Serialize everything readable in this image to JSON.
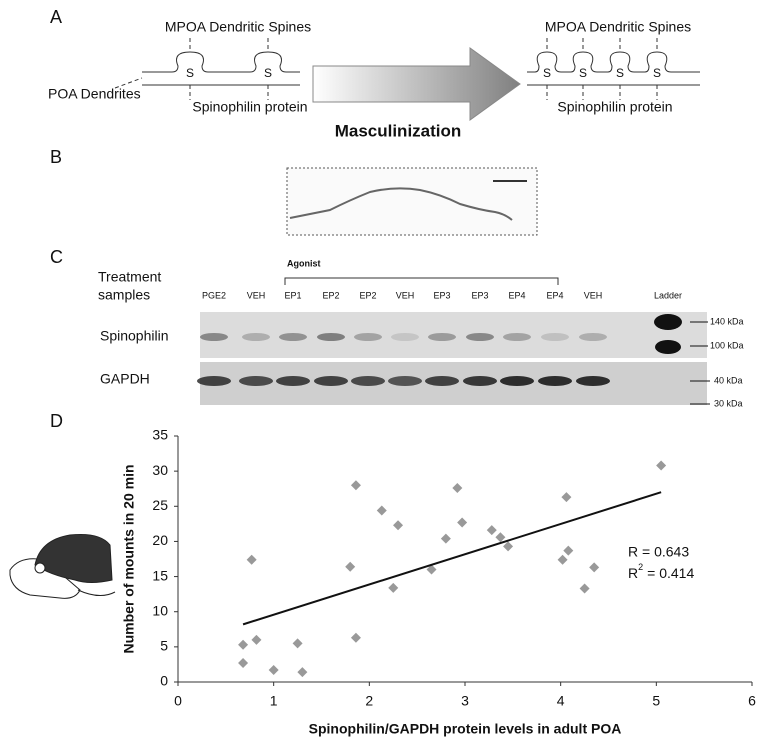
{
  "panel_labels": [
    "A",
    "B",
    "C",
    "D"
  ],
  "panel_a": {
    "spines_label_left": "MPOA Dendritic Spines",
    "spines_label_right": "MPOA Dendritic Spines",
    "dendrites_label": "POA Dendrites",
    "protein_label_left": "Spinophilin protein",
    "protein_label_right": "Spinophilin protein",
    "spine_mark": "S",
    "arrow_label": "Masculinization"
  },
  "panel_c": {
    "row_header": [
      "Treatment",
      "samples"
    ],
    "agonist_label": "Agonist",
    "lanes": [
      "PGE2",
      "VEH",
      "EP1",
      "EP2",
      "EP2",
      "VEH",
      "EP3",
      "EP3",
      "EP4",
      "EP4",
      "VEH",
      "Ladder"
    ],
    "blots": [
      "Spinophilin",
      "GAPDH"
    ],
    "markers": [
      "140 kDa",
      "100 kDa",
      "40 kDa",
      "30 kDa"
    ]
  },
  "chart_data": {
    "type": "scatter",
    "x_label": "Spinophilin/GAPDH protein levels in adult POA",
    "y_label": "Number of mounts in 20 min",
    "x": [
      0.68,
      0.68,
      0.77,
      0.82,
      1.0,
      1.25,
      1.3,
      1.8,
      1.86,
      1.86,
      2.13,
      2.25,
      2.3,
      2.65,
      2.8,
      2.92,
      2.97,
      3.28,
      3.37,
      3.45,
      4.02,
      4.06,
      4.08,
      4.25,
      4.35,
      5.05
    ],
    "y": [
      5.3,
      2.7,
      17.4,
      6.0,
      1.7,
      5.5,
      1.4,
      16.4,
      28.0,
      6.3,
      24.4,
      13.4,
      22.3,
      16.0,
      20.4,
      27.6,
      22.7,
      21.6,
      20.6,
      19.3,
      17.4,
      26.3,
      18.7,
      13.3,
      16.3,
      30.8
    ],
    "color": "#999999",
    "xlim": [
      0,
      6
    ],
    "ylim": [
      0,
      35
    ],
    "xticks": [
      0,
      1,
      2,
      3,
      4,
      5,
      6
    ],
    "yticks": [
      0,
      5,
      10,
      15,
      20,
      25,
      30,
      35
    ],
    "trendline": {
      "x": [
        0.68,
        5.05
      ],
      "y": [
        8.2,
        27.0
      ],
      "color": "#111111"
    },
    "annotations": {
      "r": "R = 0.643",
      "r2_base": "R",
      "r2_sup": "2",
      "r2_rest": "= 0.414"
    }
  }
}
